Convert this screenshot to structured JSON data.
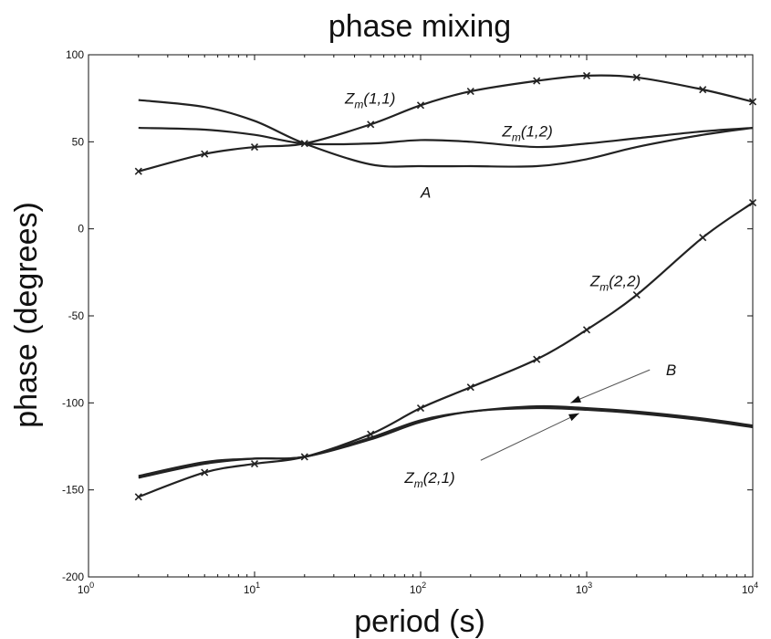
{
  "chart_data": {
    "type": "line",
    "title": "phase mixing",
    "xlabel": "period (s)",
    "ylabel": "phase (degrees)",
    "x_scale": "log",
    "xlim": [
      1,
      10000
    ],
    "ylim": [
      -200,
      100
    ],
    "x_ticks": [
      {
        "value": 1,
        "base": "10",
        "exp": "0"
      },
      {
        "value": 10,
        "base": "10",
        "exp": "1"
      },
      {
        "value": 100,
        "base": "10",
        "exp": "2"
      },
      {
        "value": 1000,
        "base": "10",
        "exp": "3"
      },
      {
        "value": 10000,
        "base": "10",
        "exp": "4"
      }
    ],
    "y_ticks": [
      -200,
      -150,
      -100,
      -50,
      0,
      50,
      100
    ],
    "grid": false,
    "legend": "none",
    "series": [
      {
        "name": "Zm(1,1)",
        "marker": "x",
        "x": [
          2,
          5,
          10,
          20,
          50,
          100,
          200,
          500,
          1000,
          2000,
          5000,
          10000
        ],
        "y": [
          33,
          43,
          47,
          49,
          60,
          71,
          79,
          85,
          88,
          87,
          80,
          73
        ]
      },
      {
        "name": "Zm(1,2)",
        "marker": "none",
        "x": [
          2,
          5,
          10,
          20,
          50,
          100,
          200,
          500,
          1000,
          2000,
          5000,
          10000
        ],
        "y": [
          58,
          57,
          54,
          49,
          49,
          51,
          50,
          47,
          49,
          52,
          56,
          58
        ]
      },
      {
        "name": "A",
        "marker": "none",
        "x": [
          2,
          5,
          10,
          20,
          50,
          100,
          200,
          500,
          1000,
          2000,
          5000,
          10000
        ],
        "y": [
          74,
          70,
          62,
          49,
          37,
          36,
          36,
          36,
          40,
          47,
          54,
          58
        ]
      },
      {
        "name": "Zm(2,2)",
        "marker": "x",
        "x": [
          2,
          5,
          10,
          20,
          50,
          100,
          200,
          500,
          1000,
          2000,
          5000,
          10000
        ],
        "y": [
          -154,
          -140,
          -135,
          -131,
          -118,
          -103,
          -91,
          -75,
          -58,
          -38,
          -5,
          15
        ]
      },
      {
        "name": "Zm(2,1)",
        "marker": "none",
        "x": [
          2,
          5,
          10,
          20,
          50,
          100,
          200,
          500,
          1000,
          2000,
          5000,
          10000
        ],
        "y": [
          -142,
          -134,
          -132,
          -131,
          -121,
          -111,
          -105,
          -103,
          -104,
          -106,
          -110,
          -114
        ]
      },
      {
        "name": "B",
        "marker": "none",
        "x": [
          2,
          5,
          10,
          20,
          50,
          100,
          200,
          500,
          1000,
          2000,
          5000,
          10000
        ],
        "y": [
          -143,
          -135,
          -132,
          -131,
          -120,
          -110,
          -105,
          -102,
          -103,
          -105,
          -109,
          -113
        ]
      }
    ],
    "annotations": [
      {
        "id": "zm11",
        "base": "Z",
        "sub": "m",
        "rest": "(1,1)",
        "x": 35,
        "y": 72
      },
      {
        "id": "zm12",
        "base": "Z",
        "sub": "m",
        "rest": "(1,2)",
        "x": 310,
        "y": 53
      },
      {
        "id": "a",
        "base": "A",
        "sub": "",
        "rest": "",
        "x": 100,
        "y": 18
      },
      {
        "id": "zm22",
        "base": "Z",
        "sub": "m",
        "rest": "(2,2)",
        "x": 1050,
        "y": -33
      },
      {
        "id": "b",
        "base": "B",
        "sub": "",
        "rest": "",
        "x": 3000,
        "y": -84
      },
      {
        "id": "zm21",
        "base": "Z",
        "sub": "m",
        "rest": "(2,1)",
        "x": 80,
        "y": -146
      }
    ],
    "arrows": [
      {
        "from": [
          2400,
          -81
        ],
        "to": [
          800,
          -100
        ]
      },
      {
        "from": [
          230,
          -133
        ],
        "to": [
          900,
          -106
        ]
      }
    ]
  }
}
